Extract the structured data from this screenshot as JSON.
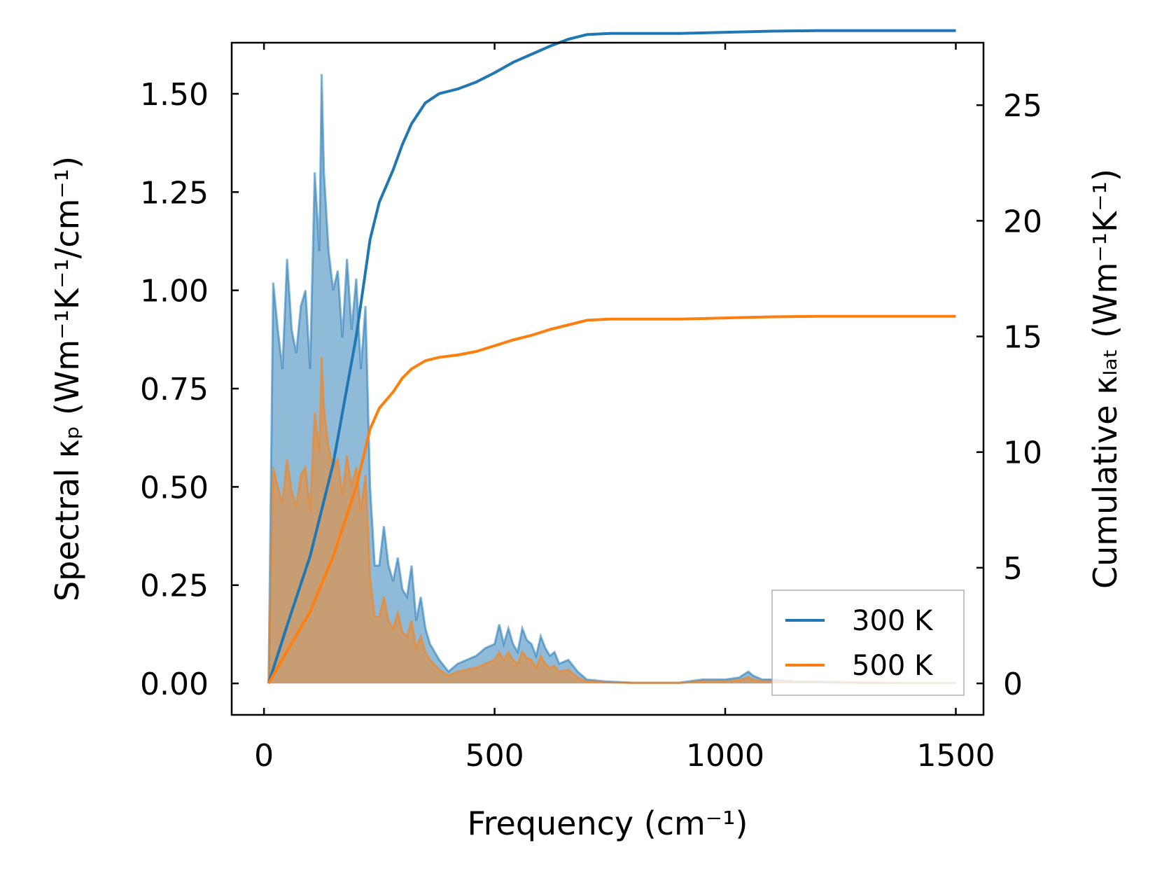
{
  "chart_data": {
    "type": "area",
    "title": "",
    "xlabel": "Frequency (cm⁻¹)",
    "ylabel_left": "Spectral κₚ (Wm⁻¹K⁻¹/cm⁻¹)",
    "ylabel_right": "Cumulative κₗₐₜ (Wm⁻¹K⁻¹)",
    "xlim": [
      -70,
      1560
    ],
    "ylim_left": [
      -0.08,
      1.63
    ],
    "ylim_right": [
      -1.36,
      27.7
    ],
    "x_ticks": [
      0,
      500,
      1000,
      1500
    ],
    "y_left_ticks": [
      "0.00",
      "0.25",
      "0.50",
      "0.75",
      "1.00",
      "1.25",
      "1.50"
    ],
    "y_right_ticks": [
      "0",
      "5",
      "10",
      "15",
      "20",
      "25"
    ],
    "legend_position": "lower-right",
    "series": [
      {
        "name": "300 K",
        "color": "#1f77b4",
        "fill_color": "#1f77b4",
        "spectral": [
          [
            10,
            0
          ],
          [
            20,
            1.02
          ],
          [
            30,
            0.9
          ],
          [
            40,
            0.8
          ],
          [
            50,
            1.08
          ],
          [
            60,
            0.9
          ],
          [
            70,
            0.84
          ],
          [
            80,
            0.96
          ],
          [
            90,
            1.0
          ],
          [
            100,
            0.8
          ],
          [
            110,
            1.3
          ],
          [
            120,
            1.1
          ],
          [
            125,
            1.55
          ],
          [
            130,
            1.3
          ],
          [
            140,
            1.1
          ],
          [
            150,
            1.0
          ],
          [
            160,
            1.05
          ],
          [
            170,
            0.88
          ],
          [
            180,
            1.08
          ],
          [
            190,
            0.9
          ],
          [
            200,
            1.03
          ],
          [
            210,
            0.8
          ],
          [
            220,
            0.96
          ],
          [
            230,
            0.5
          ],
          [
            240,
            0.3
          ],
          [
            250,
            0.3
          ],
          [
            260,
            0.4
          ],
          [
            270,
            0.3
          ],
          [
            280,
            0.26
          ],
          [
            290,
            0.32
          ],
          [
            300,
            0.24
          ],
          [
            310,
            0.22
          ],
          [
            320,
            0.3
          ],
          [
            330,
            0.16
          ],
          [
            340,
            0.22
          ],
          [
            350,
            0.14
          ],
          [
            360,
            0.1
          ],
          [
            380,
            0.06
          ],
          [
            400,
            0.03
          ],
          [
            420,
            0.05
          ],
          [
            440,
            0.06
          ],
          [
            460,
            0.07
          ],
          [
            480,
            0.09
          ],
          [
            500,
            0.1
          ],
          [
            510,
            0.15
          ],
          [
            520,
            0.1
          ],
          [
            530,
            0.14
          ],
          [
            540,
            0.1
          ],
          [
            550,
            0.08
          ],
          [
            560,
            0.14
          ],
          [
            570,
            0.11
          ],
          [
            580,
            0.1
          ],
          [
            590,
            0.07
          ],
          [
            600,
            0.12
          ],
          [
            610,
            0.09
          ],
          [
            620,
            0.07
          ],
          [
            630,
            0.08
          ],
          [
            640,
            0.05
          ],
          [
            660,
            0.06
          ],
          [
            680,
            0.03
          ],
          [
            700,
            0.01
          ],
          [
            740,
            0.005
          ],
          [
            800,
            0.002
          ],
          [
            900,
            0.002
          ],
          [
            950,
            0.01
          ],
          [
            1000,
            0.01
          ],
          [
            1030,
            0.015
          ],
          [
            1050,
            0.03
          ],
          [
            1060,
            0.02
          ],
          [
            1080,
            0.01
          ],
          [
            1100,
            0.01
          ],
          [
            1150,
            0.005
          ],
          [
            1200,
            0.005
          ],
          [
            1300,
            0.002
          ],
          [
            1400,
            0.001
          ],
          [
            1500,
            0.001
          ]
        ],
        "cumulative": [
          [
            10,
            0
          ],
          [
            50,
            2.5
          ],
          [
            100,
            5.5
          ],
          [
            150,
            9.5
          ],
          [
            200,
            15
          ],
          [
            230,
            19.2
          ],
          [
            250,
            20.8
          ],
          [
            280,
            22.2
          ],
          [
            300,
            23.3
          ],
          [
            320,
            24.2
          ],
          [
            350,
            25.1
          ],
          [
            380,
            25.5
          ],
          [
            420,
            25.7
          ],
          [
            460,
            26.0
          ],
          [
            500,
            26.4
          ],
          [
            540,
            26.85
          ],
          [
            580,
            27.2
          ],
          [
            620,
            27.55
          ],
          [
            660,
            27.85
          ],
          [
            700,
            28.05
          ],
          [
            750,
            28.1
          ],
          [
            800,
            28.1
          ],
          [
            900,
            28.1
          ],
          [
            1000,
            28.15
          ],
          [
            1100,
            28.2
          ],
          [
            1200,
            28.22
          ],
          [
            1300,
            28.22
          ],
          [
            1500,
            28.22
          ]
        ]
      },
      {
        "name": "500 K",
        "color": "#ff7f0e",
        "fill_color": "#ff7f0e",
        "spectral": [
          [
            10,
            0
          ],
          [
            20,
            0.55
          ],
          [
            30,
            0.5
          ],
          [
            40,
            0.46
          ],
          [
            50,
            0.57
          ],
          [
            60,
            0.49
          ],
          [
            70,
            0.45
          ],
          [
            80,
            0.53
          ],
          [
            90,
            0.55
          ],
          [
            100,
            0.44
          ],
          [
            110,
            0.69
          ],
          [
            120,
            0.59
          ],
          [
            125,
            0.83
          ],
          [
            130,
            0.7
          ],
          [
            140,
            0.6
          ],
          [
            150,
            0.55
          ],
          [
            160,
            0.57
          ],
          [
            170,
            0.48
          ],
          [
            180,
            0.58
          ],
          [
            190,
            0.5
          ],
          [
            200,
            0.55
          ],
          [
            210,
            0.44
          ],
          [
            220,
            0.53
          ],
          [
            230,
            0.27
          ],
          [
            240,
            0.17
          ],
          [
            250,
            0.17
          ],
          [
            260,
            0.22
          ],
          [
            270,
            0.16
          ],
          [
            280,
            0.14
          ],
          [
            290,
            0.18
          ],
          [
            300,
            0.13
          ],
          [
            310,
            0.12
          ],
          [
            320,
            0.16
          ],
          [
            330,
            0.09
          ],
          [
            340,
            0.12
          ],
          [
            350,
            0.08
          ],
          [
            360,
            0.06
          ],
          [
            380,
            0.035
          ],
          [
            400,
            0.02
          ],
          [
            420,
            0.03
          ],
          [
            440,
            0.035
          ],
          [
            460,
            0.04
          ],
          [
            480,
            0.05
          ],
          [
            500,
            0.06
          ],
          [
            510,
            0.08
          ],
          [
            520,
            0.06
          ],
          [
            530,
            0.08
          ],
          [
            540,
            0.06
          ],
          [
            550,
            0.05
          ],
          [
            560,
            0.08
          ],
          [
            570,
            0.065
          ],
          [
            580,
            0.06
          ],
          [
            590,
            0.04
          ],
          [
            600,
            0.07
          ],
          [
            610,
            0.05
          ],
          [
            620,
            0.04
          ],
          [
            630,
            0.045
          ],
          [
            640,
            0.03
          ],
          [
            660,
            0.035
          ],
          [
            680,
            0.015
          ],
          [
            700,
            0.005
          ],
          [
            740,
            0.003
          ],
          [
            800,
            0.001
          ],
          [
            900,
            0.001
          ],
          [
            950,
            0.005
          ],
          [
            1000,
            0.006
          ],
          [
            1030,
            0.008
          ],
          [
            1050,
            0.016
          ],
          [
            1060,
            0.01
          ],
          [
            1080,
            0.006
          ],
          [
            1100,
            0.005
          ],
          [
            1150,
            0.003
          ],
          [
            1200,
            0.003
          ],
          [
            1300,
            0.001
          ],
          [
            1400,
            0.001
          ],
          [
            1500,
            0.001
          ]
        ],
        "cumulative": [
          [
            10,
            0
          ],
          [
            50,
            1.4
          ],
          [
            100,
            3.1
          ],
          [
            150,
            5.5
          ],
          [
            200,
            8.5
          ],
          [
            230,
            11.0
          ],
          [
            250,
            11.9
          ],
          [
            280,
            12.6
          ],
          [
            300,
            13.2
          ],
          [
            320,
            13.6
          ],
          [
            350,
            13.95
          ],
          [
            380,
            14.1
          ],
          [
            420,
            14.2
          ],
          [
            460,
            14.35
          ],
          [
            500,
            14.6
          ],
          [
            540,
            14.85
          ],
          [
            580,
            15.05
          ],
          [
            620,
            15.3
          ],
          [
            660,
            15.5
          ],
          [
            700,
            15.7
          ],
          [
            750,
            15.75
          ],
          [
            800,
            15.75
          ],
          [
            900,
            15.75
          ],
          [
            1000,
            15.8
          ],
          [
            1100,
            15.85
          ],
          [
            1200,
            15.87
          ],
          [
            1300,
            15.87
          ],
          [
            1500,
            15.87
          ]
        ]
      }
    ]
  }
}
